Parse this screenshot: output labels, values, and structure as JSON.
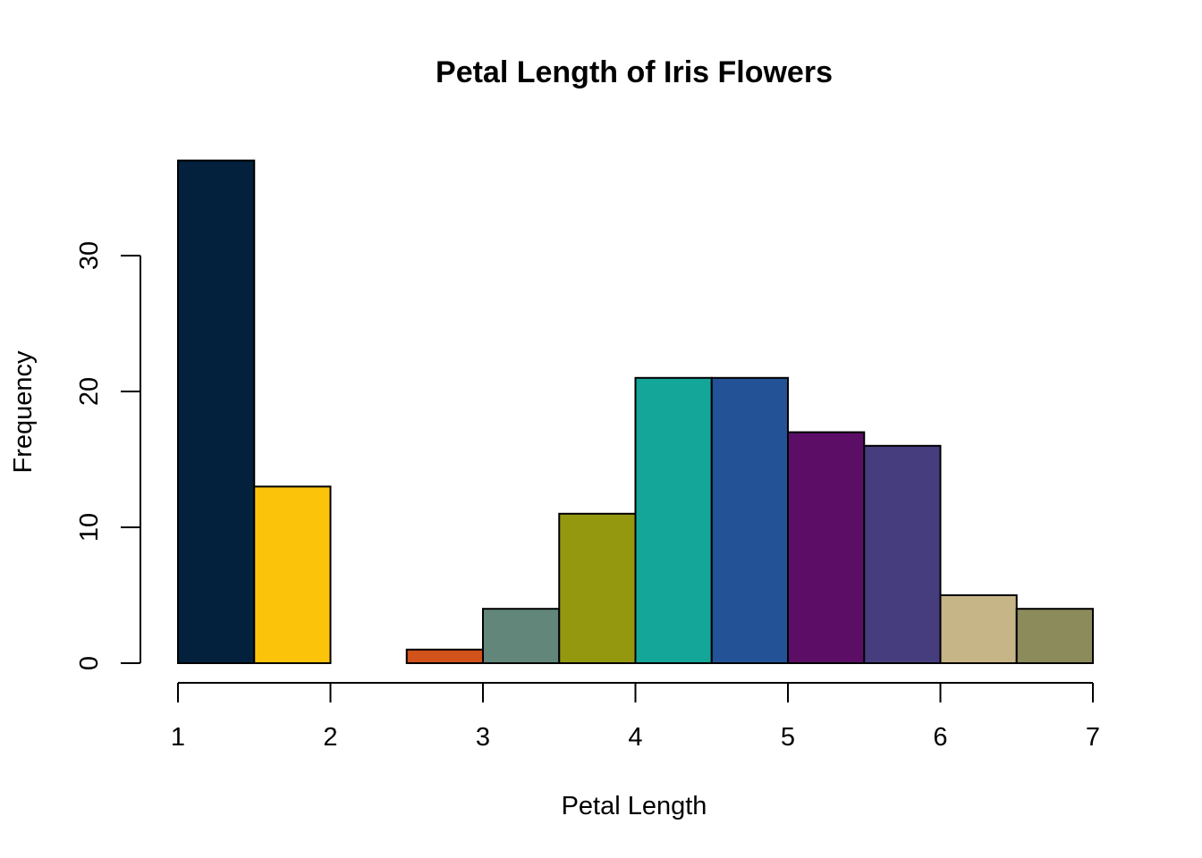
{
  "chart_data": {
    "type": "bar",
    "title": "Petal Length of Iris Flowers",
    "xlabel": "Petal Length",
    "ylabel": "Frequency",
    "xlim": [
      1,
      7
    ],
    "ylim": [
      0,
      37
    ],
    "x_ticks": [
      1,
      2,
      3,
      4,
      5,
      6,
      7
    ],
    "y_ticks": [
      0,
      10,
      20,
      30
    ],
    "grid": false,
    "bins": [
      {
        "start": 1.0,
        "end": 1.5,
        "count": 37,
        "color": "#03203C"
      },
      {
        "start": 1.5,
        "end": 2.0,
        "count": 13,
        "color": "#FCC30B"
      },
      {
        "start": 2.0,
        "end": 2.5,
        "count": 0,
        "color": "#5A8E3F"
      },
      {
        "start": 2.5,
        "end": 3.0,
        "count": 1,
        "color": "#D1521B"
      },
      {
        "start": 3.0,
        "end": 3.5,
        "count": 4,
        "color": "#62877A"
      },
      {
        "start": 3.5,
        "end": 4.0,
        "count": 11,
        "color": "#94980F"
      },
      {
        "start": 4.0,
        "end": 4.5,
        "count": 21,
        "color": "#14A698"
      },
      {
        "start": 4.5,
        "end": 5.0,
        "count": 21,
        "color": "#235296"
      },
      {
        "start": 5.0,
        "end": 5.5,
        "count": 17,
        "color": "#5C0E67"
      },
      {
        "start": 5.5,
        "end": 6.0,
        "count": 16,
        "color": "#463D7F"
      },
      {
        "start": 6.0,
        "end": 6.5,
        "count": 5,
        "color": "#C6B586"
      },
      {
        "start": 6.5,
        "end": 7.0,
        "count": 4,
        "color": "#8C8B5B"
      }
    ]
  }
}
